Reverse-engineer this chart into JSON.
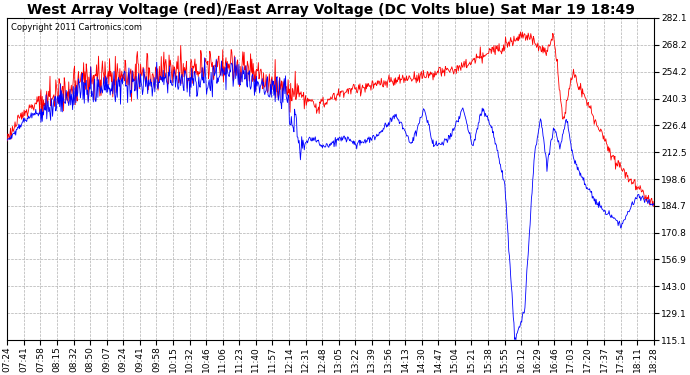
{
  "title": "West Array Voltage (red)/East Array Voltage (DC Volts blue) Sat Mar 19 18:49",
  "copyright": "Copyright 2011 Cartronics.com",
  "yticks": [
    115.1,
    129.1,
    143.0,
    156.9,
    170.8,
    184.7,
    198.6,
    212.5,
    226.4,
    240.3,
    254.2,
    268.2,
    282.1
  ],
  "ylim": [
    115.1,
    282.1
  ],
  "xtick_labels": [
    "07:24",
    "07:41",
    "07:58",
    "08:15",
    "08:32",
    "08:50",
    "09:07",
    "09:24",
    "09:41",
    "09:58",
    "10:15",
    "10:32",
    "10:46",
    "11:06",
    "11:23",
    "11:40",
    "11:57",
    "12:14",
    "12:31",
    "12:48",
    "13:05",
    "13:22",
    "13:39",
    "13:56",
    "14:13",
    "14:30",
    "14:47",
    "15:04",
    "15:21",
    "15:38",
    "15:55",
    "16:12",
    "16:29",
    "16:46",
    "17:03",
    "17:20",
    "17:37",
    "17:54",
    "18:11",
    "18:28"
  ],
  "bg_color": "#ffffff",
  "plot_bg": "#ffffff",
  "grid_color": "#b0b0b0",
  "red_color": "#ff0000",
  "blue_color": "#0000ff",
  "title_fontsize": 10,
  "copyright_fontsize": 6,
  "tick_fontsize": 6.5
}
